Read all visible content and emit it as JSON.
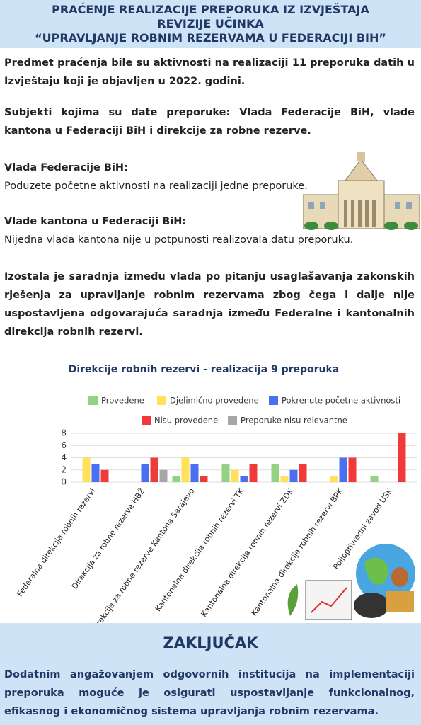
{
  "header": {
    "lines": [
      "PRAĆENJE REALIZACIJE PREPORUKA IZ IZVJEŠTAJA",
      "REVIZIJE UČINKA",
      "“UPRAVLJANJE ROBNIM REZERVAMA U FEDERACIJI BIH”"
    ]
  },
  "intro": "Predmet praćenja bile su aktivnosti na realizaciji 11 preporuka datih u Izvještaju koji je objavljen u 2022. godini.",
  "subjects": "Subjekti kojima su date preporuke: Vlada Federacije BiH, vlade kantona u Federaciji BiH i direkcije za robne rezerve.",
  "sections": [
    {
      "heading": "Vlada Federacije BiH:",
      "text": "Poduzete početne aktivnosti na realizaciji jedne preporuke."
    },
    {
      "heading": "Vlade kantona u Federaciji BiH:",
      "text": "Nijedna vlada kantona nije u potpunosti realizovala datu preporuku."
    }
  ],
  "cooperation": "Izostala je saradnja između vlada po pitanju usaglašavanja zakonskih rješenja za upravljanje robnim rezervama zbog čega i dalje nije uspostavljena odgovarajuća saradnja između Federalne i kantonalnih direkcija robnih rezervi.",
  "chart_data": {
    "type": "bar",
    "title": "Direkcije robnih rezervi - realizacija 9 preporuka",
    "categories": [
      "Federalna direkcija robnih rezervi",
      "Direkcija za robne rezerve HBŽ",
      "Direkcija za robne rezerve Kantona Sarajevo",
      "Kantonalna direkcija robnih rezervi TK",
      "Kantonalna direkcija robnih rezervi ZDK",
      "Kantonalna direkcija robnih rezervi BPK",
      "Poljoprivredni zavod USK"
    ],
    "series": [
      {
        "name": "Provedene",
        "color": "#92d282",
        "values": [
          0,
          0,
          1,
          3,
          3,
          0,
          1
        ]
      },
      {
        "name": "Djelimično provedene",
        "color": "#ffe15a",
        "values": [
          4,
          0,
          4,
          2,
          1,
          1,
          0
        ]
      },
      {
        "name": "Pokrenute početne aktivnosti",
        "color": "#4a6ff0",
        "values": [
          3,
          3,
          3,
          1,
          2,
          4,
          0
        ]
      },
      {
        "name": "Nisu provedene",
        "color": "#f03a3a",
        "values": [
          2,
          4,
          1,
          3,
          3,
          4,
          8
        ]
      },
      {
        "name": "Preporuke nisu relevantne",
        "color": "#a6a6a6",
        "values": [
          0,
          2,
          0,
          0,
          0,
          0,
          0
        ]
      }
    ],
    "ylim": [
      0,
      8
    ],
    "yticks": [
      0,
      2,
      4,
      6,
      8
    ],
    "grid": true
  },
  "conclusion": {
    "title": "ZAKLJUČAK",
    "text": "Dodatnim angažovanjem odgovornih institucija na implementaciji preporuka moguće je osigurati uspostavljanje funkcionalnog, efikasnog i ekonomičnog sistema upravljanja robnim rezervama."
  }
}
